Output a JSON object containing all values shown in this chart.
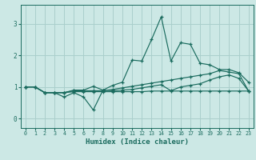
{
  "xlabel": "Humidex (Indice chaleur)",
  "bg_color": "#cce8e5",
  "grid_color": "#aacfcc",
  "line_color": "#1a6b5e",
  "xlim": [
    -0.5,
    23.5
  ],
  "ylim": [
    -0.3,
    3.6
  ],
  "xticks": [
    0,
    1,
    2,
    3,
    4,
    5,
    6,
    7,
    8,
    9,
    10,
    11,
    12,
    13,
    14,
    15,
    16,
    17,
    18,
    19,
    20,
    21,
    22,
    23
  ],
  "yticks": [
    0,
    1,
    2,
    3
  ],
  "series": [
    {
      "x": [
        0,
        1,
        2,
        3,
        4,
        5,
        6,
        7,
        8,
        9,
        10,
        11,
        12,
        13,
        14,
        15,
        16,
        17,
        18,
        19,
        20,
        21,
        22,
        23
      ],
      "y": [
        1.0,
        1.0,
        0.82,
        0.82,
        0.68,
        0.82,
        0.68,
        0.27,
        0.9,
        1.05,
        1.15,
        1.85,
        1.82,
        2.5,
        3.22,
        1.82,
        2.4,
        2.35,
        1.75,
        1.7,
        1.55,
        1.55,
        1.45,
        1.15
      ]
    },
    {
      "x": [
        0,
        1,
        2,
        3,
        4,
        5,
        6,
        7,
        8,
        9,
        10,
        11,
        12,
        13,
        14,
        15,
        16,
        17,
        18,
        19,
        20,
        21,
        22,
        23
      ],
      "y": [
        1.0,
        1.0,
        0.82,
        0.82,
        0.82,
        0.9,
        0.9,
        1.02,
        0.9,
        0.88,
        0.9,
        0.92,
        0.97,
        1.02,
        1.07,
        0.88,
        1.0,
        1.05,
        1.1,
        1.22,
        1.32,
        1.38,
        1.27,
        0.87
      ]
    },
    {
      "x": [
        0,
        1,
        2,
        3,
        4,
        5,
        6,
        7,
        8,
        9,
        10,
        11,
        12,
        13,
        14,
        15,
        16,
        17,
        18,
        19,
        20,
        21,
        22,
        23
      ],
      "y": [
        1.0,
        1.0,
        0.82,
        0.82,
        0.82,
        0.88,
        0.88,
        0.88,
        0.88,
        0.92,
        0.97,
        1.02,
        1.07,
        1.12,
        1.17,
        1.22,
        1.27,
        1.32,
        1.37,
        1.42,
        1.52,
        1.47,
        1.42,
        0.87
      ]
    },
    {
      "x": [
        0,
        1,
        2,
        3,
        4,
        5,
        6,
        7,
        8,
        9,
        10,
        11,
        12,
        13,
        14,
        15,
        16,
        17,
        18,
        19,
        20,
        21,
        22,
        23
      ],
      "y": [
        1.0,
        1.0,
        0.82,
        0.82,
        0.82,
        0.85,
        0.85,
        0.85,
        0.85,
        0.85,
        0.85,
        0.85,
        0.85,
        0.87,
        0.87,
        0.87,
        0.87,
        0.87,
        0.87,
        0.87,
        0.87,
        0.87,
        0.87,
        0.87
      ]
    }
  ]
}
